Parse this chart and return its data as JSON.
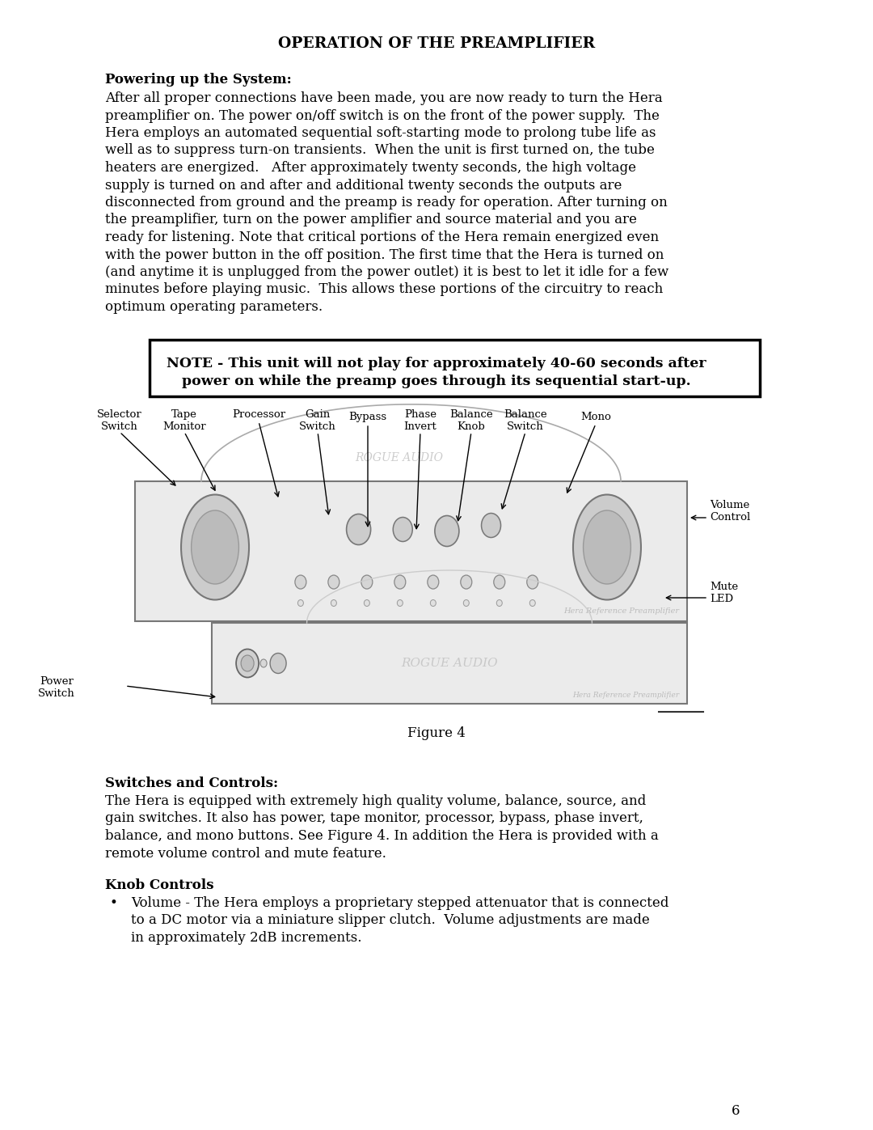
{
  "page_title": "OPERATION OF THE PREAMPLIFIER",
  "section1_title": "Powering up the System:",
  "section1_lines": [
    "After all proper connections have been made, you are now ready to turn the Hera",
    "preamplifier on. The power on/off switch is on the front of the power supply.  The",
    "Hera employs an automated sequential soft-starting mode to prolong tube life as",
    "well as to suppress turn-on transients.  When the unit is first turned on, the tube",
    "heaters are energized.   After approximately twenty seconds, the high voltage",
    "supply is turned on and after and additional twenty seconds the outputs are",
    "disconnected from ground and the preamp is ready for operation. After turning on",
    "the preamplifier, turn on the power amplifier and source material and you are",
    "ready for listening. Note that critical portions of the Hera remain energized even",
    "with the power button in the off position. The first time that the Hera is turned on",
    "(and anytime it is unplugged from the power outlet) it is best to let it idle for a few",
    "minutes before playing music.  This allows these portions of the circuitry to reach",
    "optimum operating parameters."
  ],
  "note_line1": "NOTE - This unit will not play for approximately 40-60 seconds after",
  "note_line2": "power on while the preamp goes through its sequential start-up.",
  "figure_caption": "Figure 4",
  "section2_title": "Switches and Controls:",
  "section2_lines": [
    "The Hera is equipped with extremely high quality volume, balance, source, and",
    "gain switches. It also has power, tape monitor, processor, bypass, phase invert,",
    "balance, and mono buttons. See Figure 4. In addition the Hera is provided with a",
    "remote volume control and mute feature."
  ],
  "section3_title": "Knob Controls",
  "section3_bullet_lines": [
    "Volume - The Hera employs a proprietary stepped attenuator that is connected",
    "to a DC motor via a miniature slipper clutch.  Volume adjustments are made",
    "in approximately 2dB increments."
  ],
  "page_number": "6",
  "bg_color": "#ffffff",
  "text_color": "#000000"
}
